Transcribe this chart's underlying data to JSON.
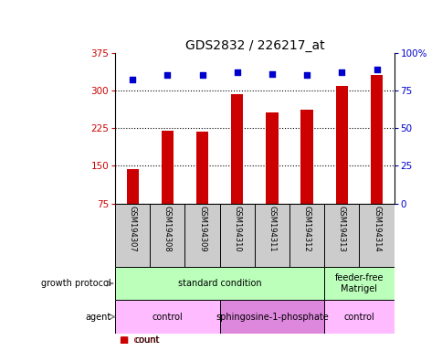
{
  "title": "GDS2832 / 226217_at",
  "samples": [
    "GSM194307",
    "GSM194308",
    "GSM194309",
    "GSM194310",
    "GSM194311",
    "GSM194312",
    "GSM194313",
    "GSM194314"
  ],
  "counts": [
    143,
    220,
    218,
    292,
    257,
    261,
    308,
    330
  ],
  "percentile_ranks": [
    82,
    85,
    85,
    87,
    86,
    85,
    87,
    89
  ],
  "ylim_left": [
    75,
    375
  ],
  "ylim_right": [
    0,
    100
  ],
  "yticks_left": [
    75,
    150,
    225,
    300,
    375
  ],
  "yticks_right": [
    0,
    25,
    50,
    75,
    100
  ],
  "bar_color": "#cc0000",
  "dot_color": "#0000cc",
  "bar_bottom": 75,
  "growth_protocol_groups": [
    {
      "text": "standard condition",
      "start": 0,
      "end": 6,
      "color": "#bbffbb"
    },
    {
      "text": "feeder-free\nMatrigel",
      "start": 6,
      "end": 8,
      "color": "#bbffbb"
    }
  ],
  "agent_groups": [
    {
      "text": "control",
      "start": 0,
      "end": 3,
      "color": "#ffbbff"
    },
    {
      "text": "sphingosine-1-phosphate",
      "start": 3,
      "end": 6,
      "color": "#dd88dd"
    },
    {
      "text": "control",
      "start": 6,
      "end": 8,
      "color": "#ffbbff"
    }
  ],
  "title_fontsize": 10,
  "tick_fontsize": 7.5,
  "sample_fontsize": 6,
  "annot_fontsize": 7,
  "legend_fontsize": 7
}
